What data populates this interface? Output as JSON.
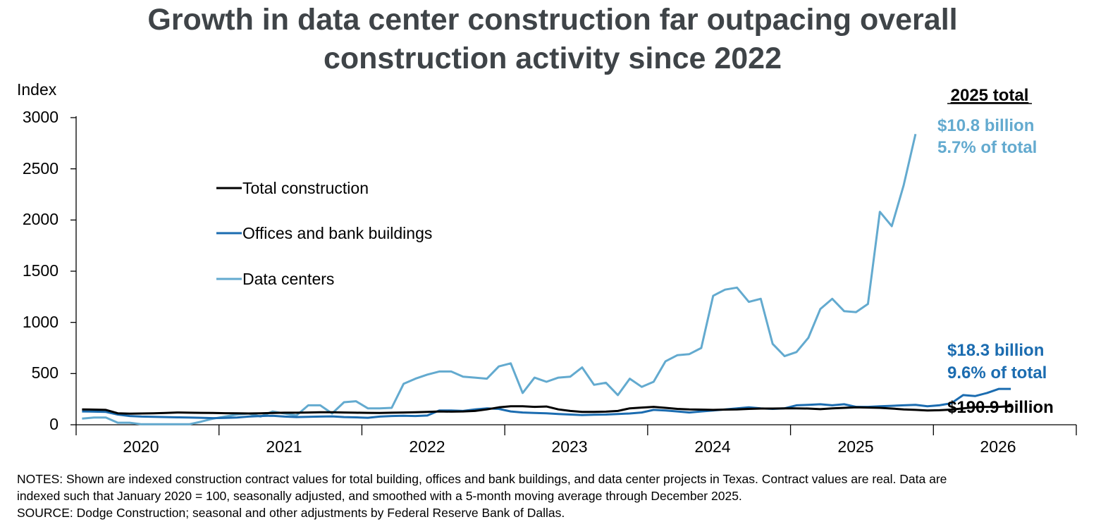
{
  "chart_data": {
    "type": "line",
    "title_lines": [
      "Growth in data center construction far outpacing overall",
      "construction activity since 2022"
    ],
    "ylabel": "Index",
    "xlabel": "",
    "ylim": [
      0,
      3000
    ],
    "yticks": [
      "0",
      "500",
      "1000",
      "1500",
      "2000",
      "2500",
      "3000"
    ],
    "ytick_values": [
      0,
      500,
      1000,
      1500,
      2000,
      2500,
      3000
    ],
    "xtick_labels": [
      "2020",
      "2021",
      "2022",
      "2023",
      "2024",
      "2025",
      "2026"
    ],
    "x_start": "2020-01",
    "x_end_exclusive": "2027-01",
    "legend": [
      "Total construction",
      "Offices and bank buildings",
      "Data centers"
    ],
    "series": [
      {
        "name": "Total construction",
        "color": "#000000",
        "values": [
          150,
          148,
          145,
          112,
          108,
          110,
          112,
          115,
          120,
          118,
          116,
          115,
          113,
          112,
          110,
          112,
          115,
          118,
          118,
          120,
          122,
          122,
          120,
          118,
          116,
          115,
          118,
          120,
          122,
          125,
          130,
          128,
          130,
          135,
          150,
          170,
          180,
          180,
          175,
          178,
          150,
          135,
          125,
          125,
          128,
          135,
          160,
          168,
          175,
          165,
          155,
          150,
          148,
          145,
          148,
          150,
          155,
          158,
          158,
          160,
          160,
          158,
          152,
          160,
          165,
          170,
          168,
          165,
          158,
          150,
          145,
          140,
          142,
          148,
          160,
          172,
          175,
          175,
          182
        ]
      },
      {
        "name": "Offices and bank buildings",
        "color": "#1b6cb0",
        "values": [
          130,
          128,
          125,
          100,
          85,
          80,
          78,
          75,
          72,
          70,
          68,
          65,
          67,
          70,
          80,
          85,
          88,
          80,
          75,
          78,
          80,
          82,
          75,
          72,
          68,
          80,
          85,
          88,
          85,
          90,
          140,
          140,
          135,
          150,
          160,
          155,
          130,
          120,
          115,
          112,
          105,
          100,
          95,
          98,
          100,
          105,
          110,
          120,
          145,
          140,
          130,
          120,
          130,
          140,
          150,
          160,
          170,
          160,
          155,
          160,
          190,
          195,
          200,
          190,
          200,
          175,
          175,
          180,
          185,
          190,
          195,
          180,
          190,
          210,
          290,
          280,
          310,
          350,
          350
        ]
      },
      {
        "name": "Data centers",
        "color": "#63aacf",
        "values": [
          60,
          70,
          70,
          20,
          20,
          5,
          5,
          5,
          5,
          5,
          30,
          60,
          80,
          100,
          110,
          80,
          130,
          110,
          90,
          190,
          190,
          110,
          220,
          230,
          160,
          160,
          165,
          400,
          450,
          490,
          520,
          520,
          470,
          460,
          450,
          570,
          600,
          310,
          460,
          420,
          460,
          470,
          560,
          390,
          410,
          290,
          450,
          370,
          420,
          620,
          680,
          690,
          750,
          1260,
          1320,
          1340,
          1200,
          1230,
          790,
          670,
          710,
          850,
          1130,
          1230,
          1110,
          1100,
          1180,
          2080,
          1940,
          2340,
          2840
        ]
      }
    ],
    "annotations": {
      "header": "2025 total",
      "data_centers_line1": "$10.8 billion",
      "data_centers_line2": "5.7% of total",
      "offices_line1": "$18.3 billion",
      "offices_line2": "9.6% of total",
      "total_line1": "$190.9 billion"
    },
    "notes_line1": "NOTES: Shown are indexed construction contract values for total building, offices and bank buildings, and data center projects in Texas. Contract values are real. Data are",
    "notes_line2": "indexed such that January 2020 = 100, seasonally adjusted, and smoothed with a 5-month moving average through December 2025.",
    "source_line": "SOURCE: Dodge Construction; seasonal and other adjustments by Federal Reserve Bank of Dallas."
  }
}
